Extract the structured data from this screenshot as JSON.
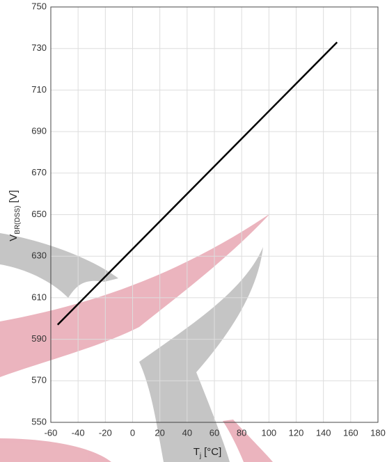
{
  "chart_data": {
    "type": "line",
    "x": [
      -55,
      150
    ],
    "values": [
      597,
      733
    ],
    "color": "#000000",
    "xlim": [
      -60,
      180
    ],
    "xticks": [
      -60,
      -40,
      -20,
      0,
      20,
      40,
      60,
      80,
      100,
      120,
      140,
      160,
      180
    ],
    "ylim": [
      550,
      750
    ],
    "yticks": [
      550,
      570,
      590,
      610,
      630,
      650,
      670,
      690,
      710,
      730,
      750
    ],
    "grid": true,
    "xlabel": {
      "main": "T",
      "sub": "j",
      "unit": "[°C]"
    },
    "ylabel": {
      "main": "V",
      "sub": "BR(DSS)",
      "unit": "[V]"
    }
  }
}
